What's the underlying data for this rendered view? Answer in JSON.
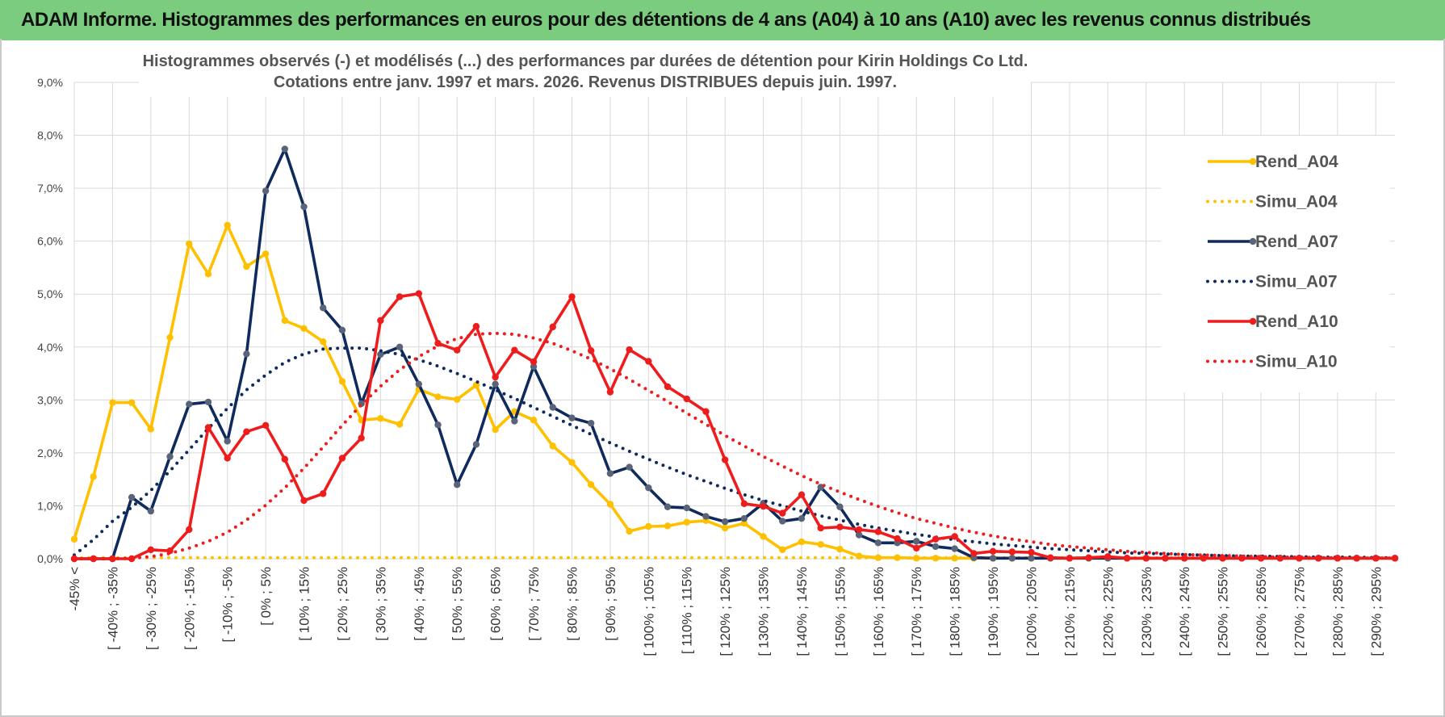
{
  "header": {
    "title": "ADAM Informe. Histogrammes des performances en euros pour des détentions de 4 ans (A04) à 10 ans (A10) avec les revenus connus distribués"
  },
  "chart_data": {
    "type": "line",
    "title": "Histogrammes observés (-) et modélisés (...) des performances par durées de détention pour Kirin Holdings Co Ltd.",
    "subtitle": "Cotations entre janv. 1997 et mars. 2026.  Revenus DISTRIBUES depuis juin. 1997.",
    "ylim": [
      0,
      9
    ],
    "yticks": [
      "0,0%",
      "1,0%",
      "2,0%",
      "3,0%",
      "4,0%",
      "5,0%",
      "6,0%",
      "7,0%",
      "8,0%",
      "9,0%"
    ],
    "x_tick_labels": [
      "-45% <",
      "[ -40% ; -35%",
      "[ -30% ; -25%",
      "[ -20% ; -15%",
      "[ -10% ; -5%",
      "[ 0% ; 5%",
      "[ 10% ; 15%",
      "[ 20% ; 25%",
      "[ 30% ; 35%",
      "[ 40% ; 45%",
      "[ 50% ; 55%",
      "[ 60% ; 65%",
      "[ 70% ; 75%",
      "[ 80% ; 85%",
      "[ 90% ; 95%",
      "[ 100% ; 105%",
      "[ 110% ; 115%",
      "[ 120% ; 125%",
      "[ 130% ; 135%",
      "[ 140% ; 145%",
      "[ 150% ; 155%",
      "[ 160% ; 165%",
      "[ 170% ; 175%",
      "[ 180% ; 185%",
      "[ 190% ; 195%",
      "[ 200% ; 205%",
      "[ 210% ; 215%",
      "[ 220% ; 225%",
      "[ 230% ; 235%",
      "[ 240% ; 245%",
      "[ 250% ; 255%",
      "[ 260% ; 265%",
      "[ 270% ; 275%",
      "[ 280% ; 285%",
      "[ 290% ; 295%"
    ],
    "legend_position": "right",
    "series": [
      {
        "name": "Rend_A04",
        "style": "solid",
        "color": "#ffc000",
        "values": [
          0.37,
          1.55,
          2.95,
          2.95,
          2.45,
          4.18,
          5.95,
          5.38,
          6.3,
          5.52,
          5.76,
          4.5,
          4.35,
          4.1,
          3.35,
          2.62,
          2.65,
          2.54,
          3.2,
          3.06,
          3.01,
          3.28,
          2.44,
          2.78,
          2.62,
          2.13,
          1.82,
          1.4,
          1.03,
          0.52,
          0.61,
          0.62,
          0.69,
          0.72,
          0.58,
          0.67,
          0.42,
          0.17,
          0.32,
          0.27,
          0.18,
          0.05,
          0.02,
          0.02,
          0.01,
          0.01,
          0.01,
          0.01,
          0.01,
          0.01,
          0.01,
          0.01,
          0.01,
          0.01,
          0.01,
          0.01,
          0.01,
          0.01,
          0.01,
          0.01,
          0.01,
          0.01,
          0.01,
          0.01,
          0.01,
          0.01,
          0.01,
          0.01,
          0.01,
          0.01
        ]
      },
      {
        "name": "Simu_A04",
        "style": "dotted",
        "color": "#ffc000",
        "values": [
          0.02,
          0.02,
          0.02,
          0.02,
          0.02,
          0.02,
          0.02,
          0.02,
          0.02,
          0.02,
          0.02,
          0.02,
          0.02,
          0.02,
          0.02,
          0.02,
          0.02,
          0.02,
          0.02,
          0.02,
          0.02,
          0.02,
          0.02,
          0.02,
          0.02,
          0.02,
          0.02,
          0.02,
          0.02,
          0.02,
          0.02,
          0.02,
          0.02,
          0.02,
          0.02,
          0.02,
          0.02,
          0.02,
          0.02,
          0.02,
          0.02,
          0.02,
          0.02,
          0.02,
          0.02,
          0.02,
          0.02,
          0.02,
          0.02,
          0.02,
          0.02,
          0.02,
          0.02,
          0.02,
          0.02,
          0.02,
          0.02,
          0.02,
          0.02,
          0.02,
          0.02,
          0.02,
          0.02,
          0.02,
          0.02,
          0.02,
          0.02,
          0.02,
          0.02,
          0.02
        ]
      },
      {
        "name": "Rend_A07",
        "style": "solid",
        "color": "#0f2a5c",
        "values": [
          0.0,
          0.0,
          0.0,
          1.16,
          0.9,
          1.93,
          2.92,
          2.96,
          2.22,
          3.87,
          6.95,
          7.74,
          6.65,
          4.74,
          4.32,
          2.93,
          3.86,
          4.0,
          3.3,
          2.53,
          1.4,
          2.16,
          3.3,
          2.6,
          3.63,
          2.86,
          2.66,
          2.56,
          1.61,
          1.73,
          1.34,
          0.98,
          0.96,
          0.8,
          0.7,
          0.76,
          1.05,
          0.71,
          0.76,
          1.35,
          0.98,
          0.45,
          0.3,
          0.3,
          0.33,
          0.23,
          0.19,
          0.02,
          0.01,
          0.01,
          0.01,
          0.01,
          0.01,
          0.01,
          0.01,
          0.01,
          0.01,
          0.01,
          0.01,
          0.01,
          0.01,
          0.01,
          0.01,
          0.01,
          0.01,
          0.01,
          0.01,
          0.01,
          0.01,
          0.01
        ]
      },
      {
        "name": "Simu_A07",
        "style": "dotted",
        "color": "#0f2a5c",
        "values": [
          0.07,
          0.36,
          0.71,
          0.97,
          1.29,
          1.66,
          2.06,
          2.46,
          2.84,
          3.19,
          3.47,
          3.71,
          3.87,
          3.96,
          3.98,
          3.98,
          3.93,
          3.86,
          3.76,
          3.64,
          3.5,
          3.35,
          3.19,
          3.03,
          2.86,
          2.69,
          2.52,
          2.35,
          2.19,
          2.03,
          1.88,
          1.73,
          1.59,
          1.46,
          1.33,
          1.21,
          1.1,
          1.0,
          0.9,
          0.81,
          0.73,
          0.65,
          0.58,
          0.52,
          0.46,
          0.41,
          0.36,
          0.32,
          0.28,
          0.25,
          0.22,
          0.19,
          0.17,
          0.15,
          0.13,
          0.11,
          0.1,
          0.09,
          0.08,
          0.07,
          0.06,
          0.05,
          0.05,
          0.04,
          0.04,
          0.03,
          0.03,
          0.03,
          0.02,
          0.02
        ]
      },
      {
        "name": "Rend_A10",
        "style": "solid",
        "color": "#ee1c1c",
        "values": [
          0.0,
          0.0,
          0.0,
          0.0,
          0.17,
          0.15,
          0.55,
          2.48,
          1.9,
          2.4,
          2.52,
          1.88,
          1.1,
          1.23,
          1.9,
          2.28,
          4.5,
          4.95,
          5.01,
          4.07,
          3.94,
          4.39,
          3.43,
          3.94,
          3.72,
          4.38,
          4.95,
          3.93,
          3.15,
          3.95,
          3.73,
          3.25,
          3.02,
          2.78,
          1.87,
          1.04,
          0.99,
          0.86,
          1.21,
          0.58,
          0.6,
          0.55,
          0.51,
          0.38,
          0.2,
          0.37,
          0.42,
          0.1,
          0.14,
          0.13,
          0.12,
          0.02,
          0.01,
          0.02,
          0.04,
          0.01,
          0.01,
          0.01,
          0.01,
          0.01,
          0.01,
          0.01,
          0.01,
          0.01,
          0.01,
          0.01,
          0.01,
          0.01,
          0.01,
          0.01
        ]
      },
      {
        "name": "Simu_A10",
        "style": "dotted",
        "color": "#ee1c1c",
        "values": [
          0.0,
          0.0,
          0.0,
          0.01,
          0.04,
          0.1,
          0.2,
          0.33,
          0.5,
          0.73,
          1.01,
          1.34,
          1.71,
          2.11,
          2.52,
          2.91,
          3.26,
          3.57,
          3.82,
          4.02,
          4.16,
          4.24,
          4.26,
          4.24,
          4.17,
          4.07,
          3.93,
          3.77,
          3.59,
          3.39,
          3.18,
          2.97,
          2.75,
          2.54,
          2.33,
          2.13,
          1.93,
          1.75,
          1.57,
          1.41,
          1.26,
          1.12,
          0.99,
          0.87,
          0.76,
          0.67,
          0.58,
          0.5,
          0.43,
          0.37,
          0.32,
          0.27,
          0.23,
          0.2,
          0.17,
          0.14,
          0.12,
          0.1,
          0.08,
          0.07,
          0.06,
          0.05,
          0.04,
          0.03,
          0.03,
          0.02,
          0.02,
          0.01,
          0.01,
          0.01
        ]
      }
    ]
  }
}
